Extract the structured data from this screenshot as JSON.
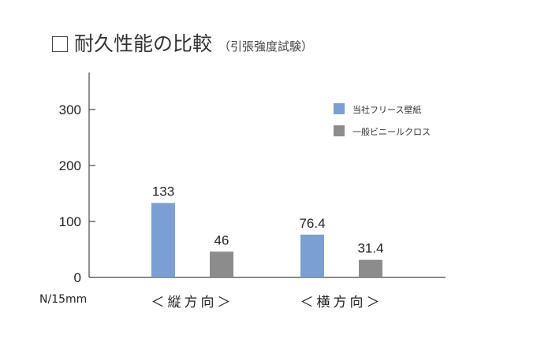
{
  "title": {
    "main": "耐久性能の比較",
    "sub": "（引張強度試験）"
  },
  "unit_label": "N/15mm",
  "colors": {
    "series_0": "#7b9fd0",
    "series_1": "#8c8c8c",
    "axis": "#444444"
  },
  "chart_data": {
    "type": "bar",
    "categories": [
      "＜縦方向＞",
      "＜横方向＞"
    ],
    "series": [
      {
        "name": "当社フリース壁紙",
        "values": [
          133,
          76.4
        ],
        "labels": [
          "133",
          "76.4"
        ]
      },
      {
        "name": "一般ビニールクロス",
        "values": [
          46,
          31.4
        ],
        "labels": [
          "46",
          "31.4"
        ]
      }
    ],
    "yticks": [
      0,
      100,
      200,
      300
    ],
    "ylim": [
      0,
      360
    ],
    "ylabel": "N/15mm",
    "legend_position": "top-right",
    "grid": false
  }
}
